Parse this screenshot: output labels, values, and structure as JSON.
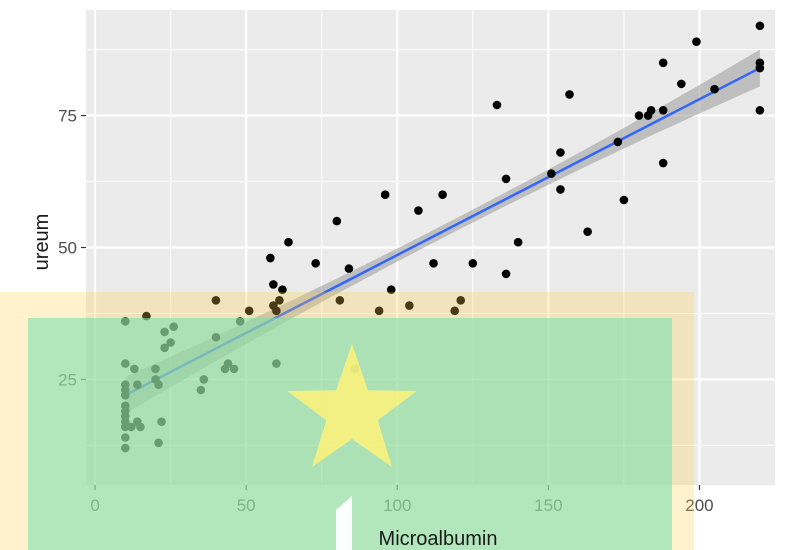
{
  "chart_data": {
    "type": "scatter",
    "xlabel": "Microalbumin",
    "ylabel": "ureum",
    "xlim": [
      -3,
      225
    ],
    "ylim": [
      5,
      95
    ],
    "x_ticks": [
      0,
      50,
      100,
      150,
      200
    ],
    "y_ticks": [
      25,
      50,
      75
    ],
    "grid": true,
    "panel_background": "#ebebeb",
    "grid_color": "#ffffff",
    "point_color": "#000000",
    "fit_line": {
      "method": "linear",
      "color": "#3366ff",
      "band_color": "#9a9a9a",
      "x": [
        10,
        220
      ],
      "y": [
        22,
        84
      ],
      "band_halfwidth_ends": 3.5,
      "band_halfwidth_center": 1.2
    },
    "points": [
      {
        "x": 10,
        "y": 12
      },
      {
        "x": 10,
        "y": 14
      },
      {
        "x": 10,
        "y": 16
      },
      {
        "x": 10,
        "y": 17
      },
      {
        "x": 10,
        "y": 18
      },
      {
        "x": 10,
        "y": 19
      },
      {
        "x": 10,
        "y": 20
      },
      {
        "x": 10,
        "y": 22
      },
      {
        "x": 10,
        "y": 23
      },
      {
        "x": 10,
        "y": 24
      },
      {
        "x": 10,
        "y": 28
      },
      {
        "x": 10,
        "y": 36
      },
      {
        "x": 12,
        "y": 16
      },
      {
        "x": 13,
        "y": 27
      },
      {
        "x": 14,
        "y": 17
      },
      {
        "x": 14,
        "y": 24
      },
      {
        "x": 15,
        "y": 16
      },
      {
        "x": 17,
        "y": 37
      },
      {
        "x": 20,
        "y": 25
      },
      {
        "x": 20,
        "y": 27
      },
      {
        "x": 21,
        "y": 13
      },
      {
        "x": 21,
        "y": 24
      },
      {
        "x": 22,
        "y": 17
      },
      {
        "x": 23,
        "y": 31
      },
      {
        "x": 23,
        "y": 34
      },
      {
        "x": 25,
        "y": 32
      },
      {
        "x": 26,
        "y": 35
      },
      {
        "x": 35,
        "y": 23
      },
      {
        "x": 36,
        "y": 25
      },
      {
        "x": 40,
        "y": 33
      },
      {
        "x": 40,
        "y": 40
      },
      {
        "x": 43,
        "y": 27
      },
      {
        "x": 44,
        "y": 28
      },
      {
        "x": 46,
        "y": 27
      },
      {
        "x": 48,
        "y": 36
      },
      {
        "x": 51,
        "y": 38
      },
      {
        "x": 58,
        "y": 48
      },
      {
        "x": 59,
        "y": 43
      },
      {
        "x": 59,
        "y": 39
      },
      {
        "x": 60,
        "y": 38
      },
      {
        "x": 60,
        "y": 28
      },
      {
        "x": 61,
        "y": 40
      },
      {
        "x": 62,
        "y": 42
      },
      {
        "x": 64,
        "y": 51
      },
      {
        "x": 73,
        "y": 47
      },
      {
        "x": 80,
        "y": 55
      },
      {
        "x": 81,
        "y": 40
      },
      {
        "x": 84,
        "y": 46
      },
      {
        "x": 86,
        "y": 27
      },
      {
        "x": 94,
        "y": 38
      },
      {
        "x": 96,
        "y": 60
      },
      {
        "x": 98,
        "y": 42
      },
      {
        "x": 104,
        "y": 39
      },
      {
        "x": 107,
        "y": 57
      },
      {
        "x": 112,
        "y": 47
      },
      {
        "x": 115,
        "y": 60
      },
      {
        "x": 119,
        "y": 38
      },
      {
        "x": 121,
        "y": 40
      },
      {
        "x": 125,
        "y": 47
      },
      {
        "x": 133,
        "y": 77
      },
      {
        "x": 136,
        "y": 63
      },
      {
        "x": 136,
        "y": 45
      },
      {
        "x": 140,
        "y": 51
      },
      {
        "x": 151,
        "y": 64
      },
      {
        "x": 154,
        "y": 61
      },
      {
        "x": 154,
        "y": 68
      },
      {
        "x": 157,
        "y": 79
      },
      {
        "x": 163,
        "y": 53
      },
      {
        "x": 173,
        "y": 70
      },
      {
        "x": 175,
        "y": 59
      },
      {
        "x": 180,
        "y": 75
      },
      {
        "x": 183,
        "y": 75
      },
      {
        "x": 184,
        "y": 76
      },
      {
        "x": 188,
        "y": 66
      },
      {
        "x": 188,
        "y": 85
      },
      {
        "x": 188,
        "y": 76
      },
      {
        "x": 194,
        "y": 81
      },
      {
        "x": 199,
        "y": 89
      },
      {
        "x": 205,
        "y": 80
      },
      {
        "x": 220,
        "y": 85
      },
      {
        "x": 220,
        "y": 84
      },
      {
        "x": 220,
        "y": 76
      },
      {
        "x": 220,
        "y": 92
      }
    ]
  },
  "overlays": {
    "yellow_rect_color": "#ffd24d",
    "green_rect_color": "#7fdfb0",
    "star_color": "#fff27a"
  }
}
